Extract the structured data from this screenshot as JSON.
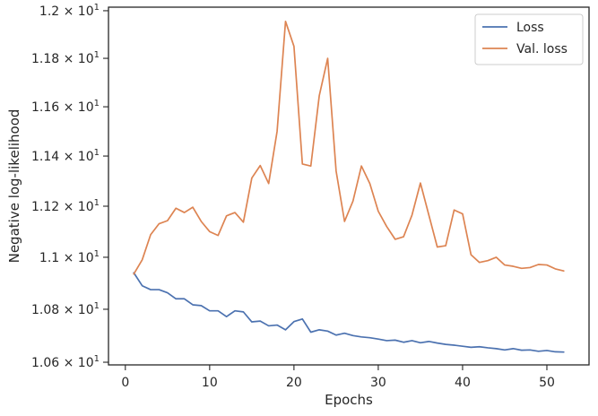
{
  "chart_data": {
    "type": "line",
    "xlabel": "Epochs",
    "ylabel": "Negative log-likelihood",
    "xlim": [
      -2,
      55
    ],
    "ylim": [
      10.59,
      12.015
    ],
    "y_scale": "log",
    "grid": false,
    "legend_position": "top-right",
    "x_ticks": [
      {
        "value": 0,
        "label": "0"
      },
      {
        "value": 10,
        "label": "10"
      },
      {
        "value": 20,
        "label": "20"
      },
      {
        "value": 30,
        "label": "30"
      },
      {
        "value": 40,
        "label": "40"
      },
      {
        "value": 50,
        "label": "50"
      }
    ],
    "y_ticks": [
      {
        "value": 10.6,
        "mantissa": "1.06"
      },
      {
        "value": 10.8,
        "mantissa": "1.08"
      },
      {
        "value": 11.0,
        "mantissa": "1.1"
      },
      {
        "value": 11.2,
        "mantissa": "1.12"
      },
      {
        "value": 11.4,
        "mantissa": "1.14"
      },
      {
        "value": 11.6,
        "mantissa": "1.16"
      },
      {
        "value": 11.8,
        "mantissa": "1.18"
      },
      {
        "value": 12.0,
        "mantissa": "1.2"
      }
    ],
    "y_tick_multiplier": "× 10",
    "y_tick_exponent": "1",
    "x": [
      1,
      2,
      3,
      4,
      5,
      6,
      7,
      8,
      9,
      10,
      11,
      12,
      13,
      14,
      15,
      16,
      17,
      18,
      19,
      20,
      21,
      22,
      23,
      24,
      25,
      26,
      27,
      28,
      29,
      30,
      31,
      32,
      33,
      34,
      35,
      36,
      37,
      38,
      39,
      40,
      41,
      42,
      43,
      44,
      45,
      46,
      47,
      48,
      49,
      50,
      51,
      52
    ],
    "series": [
      {
        "name": "Loss",
        "color": "#4c72b0",
        "values": [
          10.94,
          10.89,
          10.875,
          10.875,
          10.863,
          10.84,
          10.84,
          10.817,
          10.814,
          10.794,
          10.794,
          10.772,
          10.794,
          10.79,
          10.752,
          10.755,
          10.737,
          10.74,
          10.722,
          10.753,
          10.763,
          10.713,
          10.722,
          10.717,
          10.702,
          10.709,
          10.7,
          10.695,
          10.692,
          10.687,
          10.681,
          10.683,
          10.675,
          10.681,
          10.673,
          10.678,
          10.672,
          10.667,
          10.664,
          10.66,
          10.656,
          10.658,
          10.654,
          10.651,
          10.646,
          10.651,
          10.645,
          10.646,
          10.641,
          10.644,
          10.639,
          10.638
        ]
      },
      {
        "name": "Val. loss",
        "color": "#dd8452",
        "values": [
          10.935,
          10.99,
          11.088,
          11.131,
          11.143,
          11.192,
          11.175,
          11.196,
          11.14,
          11.1,
          11.085,
          11.162,
          11.175,
          11.137,
          11.312,
          11.362,
          11.29,
          11.5,
          11.955,
          11.85,
          11.368,
          11.36,
          11.645,
          11.8,
          11.34,
          11.14,
          11.22,
          11.36,
          11.29,
          11.18,
          11.12,
          11.07,
          11.08,
          11.165,
          11.292,
          11.165,
          11.04,
          11.045,
          11.185,
          11.17,
          11.01,
          10.98,
          10.987,
          11.0,
          10.97,
          10.965,
          10.957,
          10.96,
          10.972,
          10.97,
          10.955,
          10.947
        ]
      }
    ]
  }
}
